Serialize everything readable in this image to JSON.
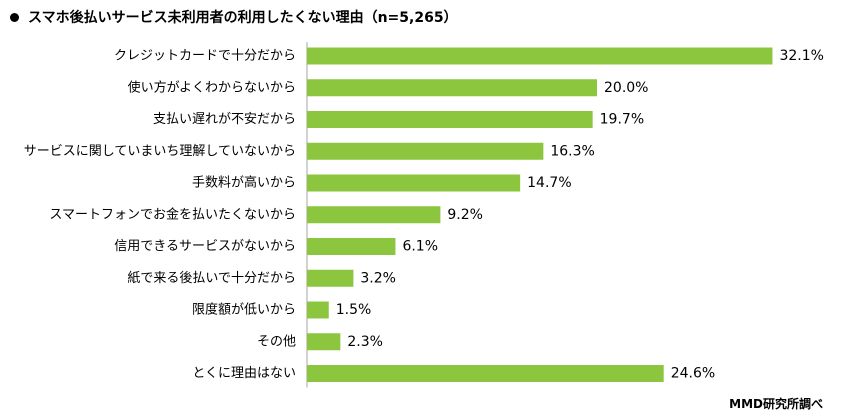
{
  "title": "スマホ後払いサービス未利用者の利用したくない理由（n=5,265）",
  "credit": "MMD研究所調べ",
  "chart_data": {
    "type": "bar",
    "orientation": "horizontal",
    "categories": [
      "クレジットカードで十分だから",
      "使い方がよくわからないから",
      "支払い遅れが不安だから",
      "サービスに関していまいち理解していないから",
      "手数料が高いから",
      "スマートフォンでお金を払いたくないから",
      "信用できるサービスがないから",
      "紙で来る後払いで十分だから",
      "限度額が低いから",
      "その他",
      "とくに理由はない"
    ],
    "values": [
      32.1,
      20.0,
      19.7,
      16.3,
      14.7,
      9.2,
      6.1,
      3.2,
      1.5,
      2.3,
      24.6
    ],
    "value_suffix": "%",
    "bar_color": "#8cc63f",
    "axis_color": "#a6a6a6",
    "grid": false,
    "legend": "none"
  }
}
